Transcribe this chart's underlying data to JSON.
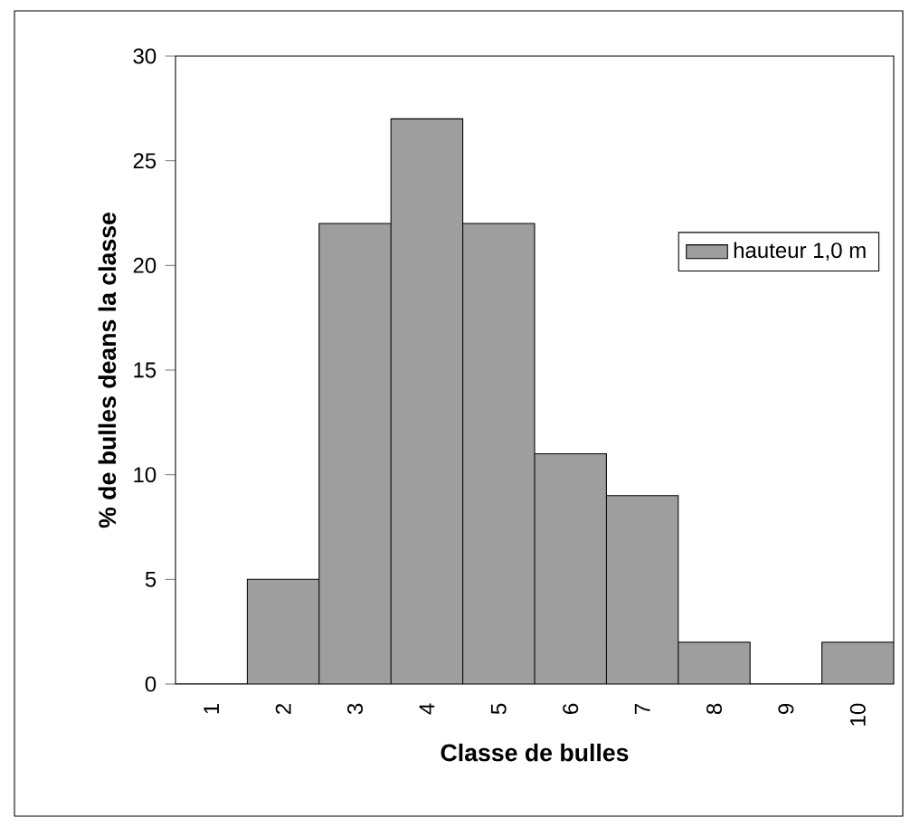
{
  "chart_data": {
    "type": "bar",
    "xlabel": "Classe de bulles",
    "ylabel": "% de bulles deans la classe",
    "categories": [
      "1",
      "2",
      "3",
      "4",
      "5",
      "6",
      "7",
      "8",
      "9",
      "10"
    ],
    "series": [
      {
        "name": "hauteur 1,0 m",
        "color": "#9e9e9e",
        "values": [
          0,
          5,
          22,
          27,
          22,
          11,
          9,
          2,
          0,
          2
        ]
      }
    ],
    "ylim": [
      0,
      30
    ],
    "yticks": [
      0,
      5,
      10,
      15,
      20,
      25,
      30
    ],
    "grid": false,
    "legend": "right"
  }
}
